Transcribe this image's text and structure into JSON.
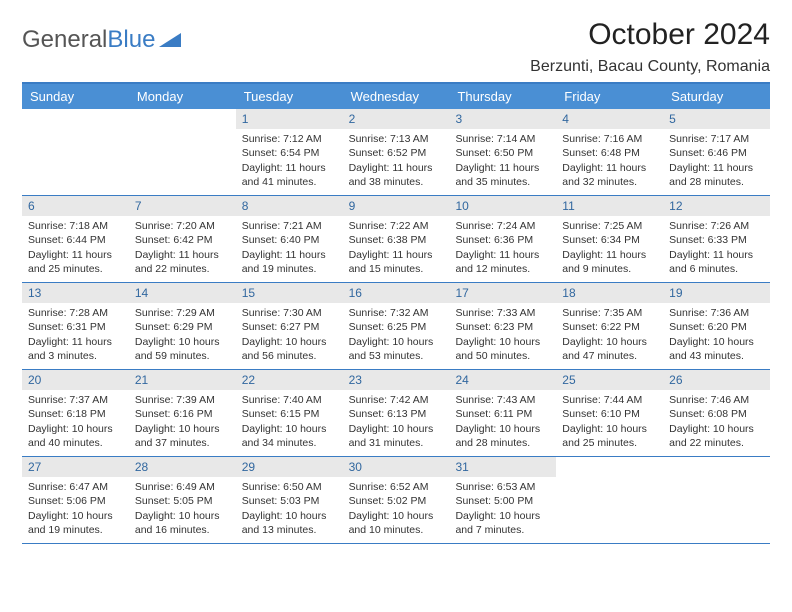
{
  "logo": {
    "text1": "General",
    "text2": "Blue"
  },
  "title": "October 2024",
  "location": "Berzunti, Bacau County, Romania",
  "day_names": [
    "Sunday",
    "Monday",
    "Tuesday",
    "Wednesday",
    "Thursday",
    "Friday",
    "Saturday"
  ],
  "colors": {
    "header_bg": "#4a8fd4",
    "border": "#3a7cc4",
    "daynum_bg": "#e8e8e8",
    "daynum_color": "#31679f"
  },
  "weeks": [
    [
      {
        "n": "",
        "sr": "",
        "ss": "",
        "dl": ""
      },
      {
        "n": "",
        "sr": "",
        "ss": "",
        "dl": ""
      },
      {
        "n": "1",
        "sr": "Sunrise: 7:12 AM",
        "ss": "Sunset: 6:54 PM",
        "dl": "Daylight: 11 hours and 41 minutes."
      },
      {
        "n": "2",
        "sr": "Sunrise: 7:13 AM",
        "ss": "Sunset: 6:52 PM",
        "dl": "Daylight: 11 hours and 38 minutes."
      },
      {
        "n": "3",
        "sr": "Sunrise: 7:14 AM",
        "ss": "Sunset: 6:50 PM",
        "dl": "Daylight: 11 hours and 35 minutes."
      },
      {
        "n": "4",
        "sr": "Sunrise: 7:16 AM",
        "ss": "Sunset: 6:48 PM",
        "dl": "Daylight: 11 hours and 32 minutes."
      },
      {
        "n": "5",
        "sr": "Sunrise: 7:17 AM",
        "ss": "Sunset: 6:46 PM",
        "dl": "Daylight: 11 hours and 28 minutes."
      }
    ],
    [
      {
        "n": "6",
        "sr": "Sunrise: 7:18 AM",
        "ss": "Sunset: 6:44 PM",
        "dl": "Daylight: 11 hours and 25 minutes."
      },
      {
        "n": "7",
        "sr": "Sunrise: 7:20 AM",
        "ss": "Sunset: 6:42 PM",
        "dl": "Daylight: 11 hours and 22 minutes."
      },
      {
        "n": "8",
        "sr": "Sunrise: 7:21 AM",
        "ss": "Sunset: 6:40 PM",
        "dl": "Daylight: 11 hours and 19 minutes."
      },
      {
        "n": "9",
        "sr": "Sunrise: 7:22 AM",
        "ss": "Sunset: 6:38 PM",
        "dl": "Daylight: 11 hours and 15 minutes."
      },
      {
        "n": "10",
        "sr": "Sunrise: 7:24 AM",
        "ss": "Sunset: 6:36 PM",
        "dl": "Daylight: 11 hours and 12 minutes."
      },
      {
        "n": "11",
        "sr": "Sunrise: 7:25 AM",
        "ss": "Sunset: 6:34 PM",
        "dl": "Daylight: 11 hours and 9 minutes."
      },
      {
        "n": "12",
        "sr": "Sunrise: 7:26 AM",
        "ss": "Sunset: 6:33 PM",
        "dl": "Daylight: 11 hours and 6 minutes."
      }
    ],
    [
      {
        "n": "13",
        "sr": "Sunrise: 7:28 AM",
        "ss": "Sunset: 6:31 PM",
        "dl": "Daylight: 11 hours and 3 minutes."
      },
      {
        "n": "14",
        "sr": "Sunrise: 7:29 AM",
        "ss": "Sunset: 6:29 PM",
        "dl": "Daylight: 10 hours and 59 minutes."
      },
      {
        "n": "15",
        "sr": "Sunrise: 7:30 AM",
        "ss": "Sunset: 6:27 PM",
        "dl": "Daylight: 10 hours and 56 minutes."
      },
      {
        "n": "16",
        "sr": "Sunrise: 7:32 AM",
        "ss": "Sunset: 6:25 PM",
        "dl": "Daylight: 10 hours and 53 minutes."
      },
      {
        "n": "17",
        "sr": "Sunrise: 7:33 AM",
        "ss": "Sunset: 6:23 PM",
        "dl": "Daylight: 10 hours and 50 minutes."
      },
      {
        "n": "18",
        "sr": "Sunrise: 7:35 AM",
        "ss": "Sunset: 6:22 PM",
        "dl": "Daylight: 10 hours and 47 minutes."
      },
      {
        "n": "19",
        "sr": "Sunrise: 7:36 AM",
        "ss": "Sunset: 6:20 PM",
        "dl": "Daylight: 10 hours and 43 minutes."
      }
    ],
    [
      {
        "n": "20",
        "sr": "Sunrise: 7:37 AM",
        "ss": "Sunset: 6:18 PM",
        "dl": "Daylight: 10 hours and 40 minutes."
      },
      {
        "n": "21",
        "sr": "Sunrise: 7:39 AM",
        "ss": "Sunset: 6:16 PM",
        "dl": "Daylight: 10 hours and 37 minutes."
      },
      {
        "n": "22",
        "sr": "Sunrise: 7:40 AM",
        "ss": "Sunset: 6:15 PM",
        "dl": "Daylight: 10 hours and 34 minutes."
      },
      {
        "n": "23",
        "sr": "Sunrise: 7:42 AM",
        "ss": "Sunset: 6:13 PM",
        "dl": "Daylight: 10 hours and 31 minutes."
      },
      {
        "n": "24",
        "sr": "Sunrise: 7:43 AM",
        "ss": "Sunset: 6:11 PM",
        "dl": "Daylight: 10 hours and 28 minutes."
      },
      {
        "n": "25",
        "sr": "Sunrise: 7:44 AM",
        "ss": "Sunset: 6:10 PM",
        "dl": "Daylight: 10 hours and 25 minutes."
      },
      {
        "n": "26",
        "sr": "Sunrise: 7:46 AM",
        "ss": "Sunset: 6:08 PM",
        "dl": "Daylight: 10 hours and 22 minutes."
      }
    ],
    [
      {
        "n": "27",
        "sr": "Sunrise: 6:47 AM",
        "ss": "Sunset: 5:06 PM",
        "dl": "Daylight: 10 hours and 19 minutes."
      },
      {
        "n": "28",
        "sr": "Sunrise: 6:49 AM",
        "ss": "Sunset: 5:05 PM",
        "dl": "Daylight: 10 hours and 16 minutes."
      },
      {
        "n": "29",
        "sr": "Sunrise: 6:50 AM",
        "ss": "Sunset: 5:03 PM",
        "dl": "Daylight: 10 hours and 13 minutes."
      },
      {
        "n": "30",
        "sr": "Sunrise: 6:52 AM",
        "ss": "Sunset: 5:02 PM",
        "dl": "Daylight: 10 hours and 10 minutes."
      },
      {
        "n": "31",
        "sr": "Sunrise: 6:53 AM",
        "ss": "Sunset: 5:00 PM",
        "dl": "Daylight: 10 hours and 7 minutes."
      },
      {
        "n": "",
        "sr": "",
        "ss": "",
        "dl": ""
      },
      {
        "n": "",
        "sr": "",
        "ss": "",
        "dl": ""
      }
    ]
  ]
}
